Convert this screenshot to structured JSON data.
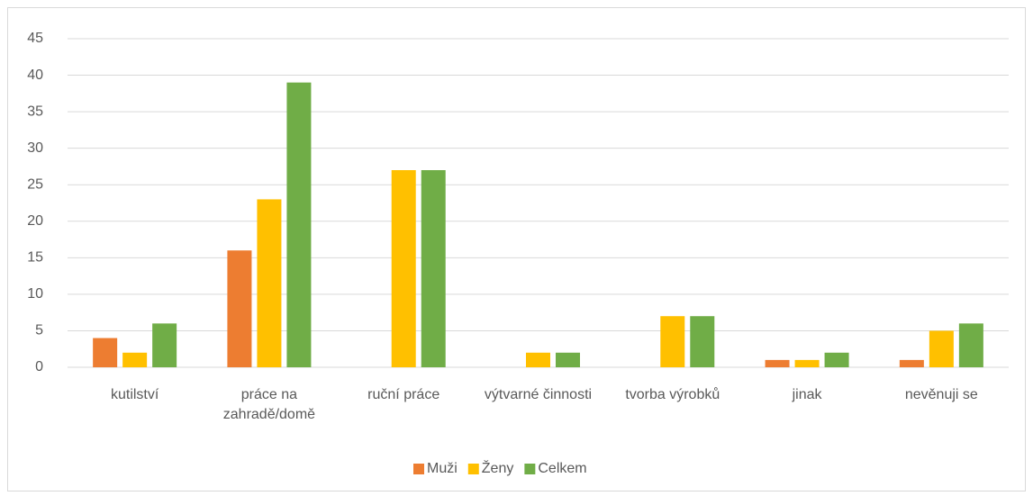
{
  "chart_data": {
    "type": "bar",
    "categories": [
      "kutilství",
      "práce na zahradě/domě",
      "ruční práce",
      "výtvarné činnosti",
      "tvorba výrobků",
      "jinak",
      "nevěnuji se"
    ],
    "series": [
      {
        "name": "Muži",
        "color": "#ed7d31",
        "values": [
          4,
          16,
          0,
          0,
          0,
          1,
          1
        ]
      },
      {
        "name": "Ženy",
        "color": "#ffc000",
        "values": [
          2,
          23,
          27,
          2,
          7,
          1,
          5
        ]
      },
      {
        "name": "Celkem",
        "color": "#70ad47",
        "values": [
          6,
          39,
          27,
          2,
          7,
          2,
          6
        ]
      }
    ],
    "ylim": [
      0,
      45
    ],
    "yticks": [
      0,
      5,
      10,
      15,
      20,
      25,
      30,
      35,
      40,
      45
    ],
    "grid": true,
    "legend": "bottom"
  }
}
